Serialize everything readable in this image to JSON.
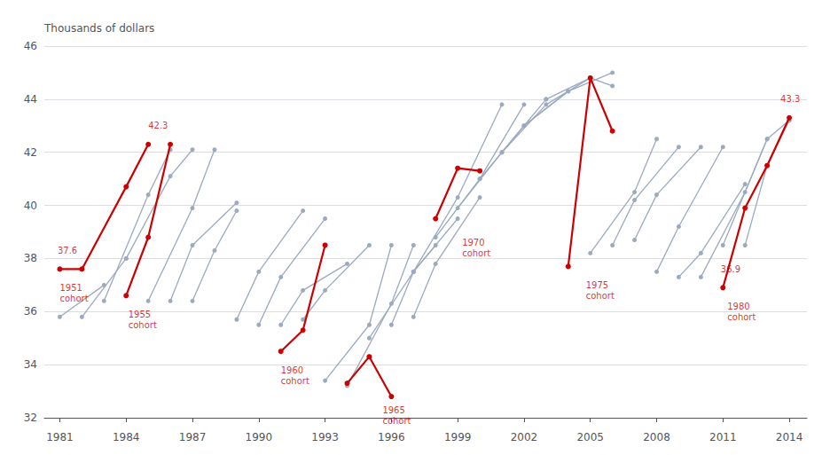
{
  "chart_data": {
    "type": "line",
    "marker": "circle",
    "grid": true,
    "ylabel": "Thousands of dollars",
    "xlim": [
      1980.3,
      2014.8
    ],
    "ylim": [
      32,
      46
    ],
    "xticks": [
      1981,
      1984,
      1987,
      1990,
      1993,
      1996,
      1999,
      2002,
      2005,
      2008,
      2011,
      2014
    ],
    "yticks": [
      32,
      34,
      36,
      38,
      40,
      42,
      44,
      46
    ],
    "series": [
      {
        "color": "#9BAAC0",
        "x": [
          1981,
          1983
        ],
        "values": [
          35.8,
          37.0
        ]
      },
      {
        "color": "#9BAAC0",
        "x": [
          1982,
          1984
        ],
        "values": [
          35.8,
          38.0
        ]
      },
      {
        "color": "#9BAAC0",
        "x": [
          1983,
          1985,
          1986
        ],
        "values": [
          36.4,
          40.4,
          42.1
        ]
      },
      {
        "color": "#9BAAC0",
        "x": [
          1984,
          1986,
          1987
        ],
        "values": [
          38.0,
          41.1,
          42.1
        ]
      },
      {
        "color": "#9BAAC0",
        "x": [
          1985,
          1987,
          1988
        ],
        "values": [
          36.4,
          39.9,
          42.1
        ]
      },
      {
        "color": "#9BAAC0",
        "x": [
          1986,
          1987,
          1989
        ],
        "values": [
          36.4,
          38.5,
          40.1
        ]
      },
      {
        "color": "#9BAAC0",
        "x": [
          1987,
          1988,
          1989
        ],
        "values": [
          36.4,
          38.3,
          39.8
        ]
      },
      {
        "color": "#9BAAC0",
        "x": [
          1989,
          1990,
          1992
        ],
        "values": [
          35.7,
          37.5,
          39.8
        ]
      },
      {
        "color": "#9BAAC0",
        "x": [
          1990,
          1991,
          1993
        ],
        "values": [
          35.5,
          37.3,
          39.5
        ]
      },
      {
        "color": "#9BAAC0",
        "x": [
          1991,
          1992,
          1994
        ],
        "values": [
          35.5,
          36.8,
          37.8
        ]
      },
      {
        "color": "#9BAAC0",
        "x": [
          1992,
          1993,
          1995
        ],
        "values": [
          35.7,
          36.8,
          38.5
        ]
      },
      {
        "color": "#9BAAC0",
        "x": [
          1993,
          1995,
          1996
        ],
        "values": [
          33.4,
          35.5,
          38.5
        ]
      },
      {
        "color": "#9BAAC0",
        "x": [
          1994,
          1996,
          1997
        ],
        "values": [
          33.2,
          36.3,
          38.5
        ]
      },
      {
        "color": "#9BAAC0",
        "x": [
          1995,
          1997,
          1998
        ],
        "values": [
          35.0,
          37.5,
          38.5
        ]
      },
      {
        "color": "#9BAAC0",
        "x": [
          1996,
          1997,
          1999
        ],
        "values": [
          35.5,
          37.5,
          39.5
        ]
      },
      {
        "color": "#9BAAC0",
        "x": [
          1997,
          1998,
          2000
        ],
        "values": [
          35.8,
          37.8,
          40.3
        ]
      },
      {
        "color": "#9BAAC0",
        "x": [
          1997,
          1999,
          2001
        ],
        "values": [
          37.5,
          40.3,
          43.8
        ]
      },
      {
        "color": "#9BAAC0",
        "x": [
          1998,
          2000,
          2002
        ],
        "values": [
          38.8,
          41.0,
          43.8
        ]
      },
      {
        "color": "#9BAAC0",
        "x": [
          1999,
          2001,
          2003
        ],
        "values": [
          39.9,
          42.0,
          44.0
        ]
      },
      {
        "color": "#9BAAC0",
        "x": [
          2000,
          2002,
          2004
        ],
        "values": [
          41.0,
          43.0,
          44.3
        ]
      },
      {
        "color": "#9BAAC0",
        "x": [
          2001,
          2003,
          2005
        ],
        "values": [
          42.0,
          43.8,
          44.8
        ]
      },
      {
        "color": "#9BAAC0",
        "x": [
          2002,
          2004,
          2006
        ],
        "values": [
          43.0,
          44.3,
          45.0
        ]
      },
      {
        "color": "#9BAAC0",
        "x": [
          2003,
          2005,
          2006
        ],
        "values": [
          44.0,
          44.8,
          44.5
        ]
      },
      {
        "color": "#9BAAC0",
        "x": [
          2005,
          2007,
          2008
        ],
        "values": [
          38.2,
          40.5,
          42.5
        ]
      },
      {
        "color": "#9BAAC0",
        "x": [
          2006,
          2007,
          2009
        ],
        "values": [
          38.5,
          40.2,
          42.2
        ]
      },
      {
        "color": "#9BAAC0",
        "x": [
          2007,
          2008,
          2010
        ],
        "values": [
          38.7,
          40.4,
          42.2
        ]
      },
      {
        "color": "#9BAAC0",
        "x": [
          2008,
          2009,
          2011
        ],
        "values": [
          37.5,
          39.2,
          42.2
        ]
      },
      {
        "color": "#9BAAC0",
        "x": [
          2009,
          2010,
          2012
        ],
        "values": [
          37.3,
          38.2,
          40.8
        ]
      },
      {
        "color": "#9BAAC0",
        "x": [
          2010,
          2012,
          2013
        ],
        "values": [
          37.3,
          40.5,
          42.5
        ]
      },
      {
        "color": "#9BAAC0",
        "x": [
          2011,
          2013,
          2014
        ],
        "values": [
          38.5,
          42.5,
          43.2
        ]
      },
      {
        "color": "#9BAAC0",
        "x": [
          2012,
          2013,
          2014
        ],
        "values": [
          38.5,
          41.5,
          43.2
        ]
      },
      {
        "color": "#CC0000",
        "x": [
          1981,
          1982,
          1984,
          1985
        ],
        "values": [
          37.6,
          37.6,
          40.7,
          42.3
        ]
      },
      {
        "color": "#CC0000",
        "x": [
          1984,
          1985,
          1986
        ],
        "values": [
          36.6,
          38.8,
          42.3
        ]
      },
      {
        "color": "#CC0000",
        "x": [
          1991,
          1992,
          1993
        ],
        "values": [
          34.5,
          35.3,
          38.5
        ]
      },
      {
        "color": "#CC0000",
        "x": [
          1994,
          1995,
          1996
        ],
        "values": [
          33.3,
          34.3,
          32.8
        ]
      },
      {
        "color": "#CC0000",
        "x": [
          1998,
          1999,
          2000
        ],
        "values": [
          39.5,
          41.4,
          41.3
        ]
      },
      {
        "color": "#CC0000",
        "x": [
          2004,
          2005,
          2006
        ],
        "values": [
          37.7,
          44.8,
          42.8
        ]
      },
      {
        "color": "#CC0000",
        "x": [
          2011,
          2012,
          2013,
          2014
        ],
        "values": [
          36.9,
          39.9,
          41.5,
          43.3
        ]
      }
    ],
    "annotations": [
      {
        "text": "1951\ncohort",
        "x": 1981.0,
        "y": 37.1,
        "color": "#CC0000",
        "anchor": "top"
      },
      {
        "text": "37.6",
        "x": 1980.9,
        "y": 38.1,
        "color": "#CC0000",
        "anchor": "bottom"
      },
      {
        "text": "1955\ncohort",
        "x": 1984.1,
        "y": 36.1,
        "color": "#CC0000",
        "anchor": "top"
      },
      {
        "text": "42.3",
        "x": 1985.0,
        "y": 42.8,
        "color": "#CC0000",
        "anchor": "bottom"
      },
      {
        "text": "1960\ncohort",
        "x": 1991.0,
        "y": 34.0,
        "color": "#CC0000",
        "anchor": "top"
      },
      {
        "text": "1965\ncohort",
        "x": 1995.6,
        "y": 32.5,
        "color": "#CC0000",
        "anchor": "top"
      },
      {
        "text": "1970\ncohort",
        "x": 1999.2,
        "y": 38.8,
        "color": "#CC0000",
        "anchor": "top"
      },
      {
        "text": "1975\ncohort",
        "x": 2004.8,
        "y": 37.2,
        "color": "#CC0000",
        "anchor": "top"
      },
      {
        "text": "1980\ncohort",
        "x": 2011.2,
        "y": 36.4,
        "color": "#CC0000",
        "anchor": "top"
      },
      {
        "text": "36.9",
        "x": 2010.9,
        "y": 37.4,
        "color": "#CC0000",
        "anchor": "bottom"
      },
      {
        "text": "43.3",
        "x": 2013.6,
        "y": 43.8,
        "color": "#CC0000",
        "anchor": "bottom"
      }
    ]
  }
}
